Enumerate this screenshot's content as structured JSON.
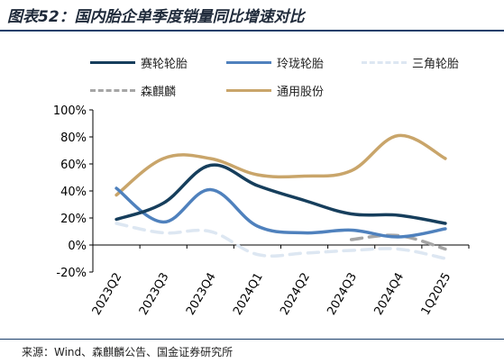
{
  "header": {
    "title": "图表52：国内胎企单季度销量同比增速对比"
  },
  "footer": {
    "source": "来源：Wind、森麒麟公告、国金证券研究所"
  },
  "chart_data": {
    "type": "line",
    "categories": [
      "2023Q2",
      "2023Q3",
      "2023Q4",
      "2024Q1",
      "2024Q2",
      "2024Q3",
      "2024Q4",
      "1Q2025"
    ],
    "ylim": [
      -20,
      100
    ],
    "yticks": [
      "-20%",
      "0%",
      "20%",
      "40%",
      "60%",
      "80%",
      "100%"
    ],
    "grid": false,
    "legend_position": "top",
    "series": [
      {
        "name": "赛轮轮胎",
        "color": "#163e5c",
        "style": "solid",
        "values": [
          19,
          31,
          59,
          44,
          33,
          23,
          22,
          16
        ]
      },
      {
        "name": "玲珑轮胎",
        "color": "#4f81bd",
        "style": "solid",
        "values": [
          42,
          17,
          41,
          14,
          9,
          11,
          6,
          12
        ]
      },
      {
        "name": "三角轮胎",
        "color": "#dde7f2",
        "style": "dashed",
        "values": [
          16,
          9,
          10,
          -7,
          -6,
          -4,
          -3,
          -10
        ]
      },
      {
        "name": "森麒麟",
        "color": "#a6a6a6",
        "style": "dashed",
        "values": [
          null,
          null,
          null,
          null,
          null,
          4,
          7,
          -3
        ]
      },
      {
        "name": "通用股份",
        "color": "#c9a56a",
        "style": "solid",
        "values": [
          37,
          64,
          64,
          52,
          51,
          55,
          81,
          64
        ]
      }
    ]
  }
}
